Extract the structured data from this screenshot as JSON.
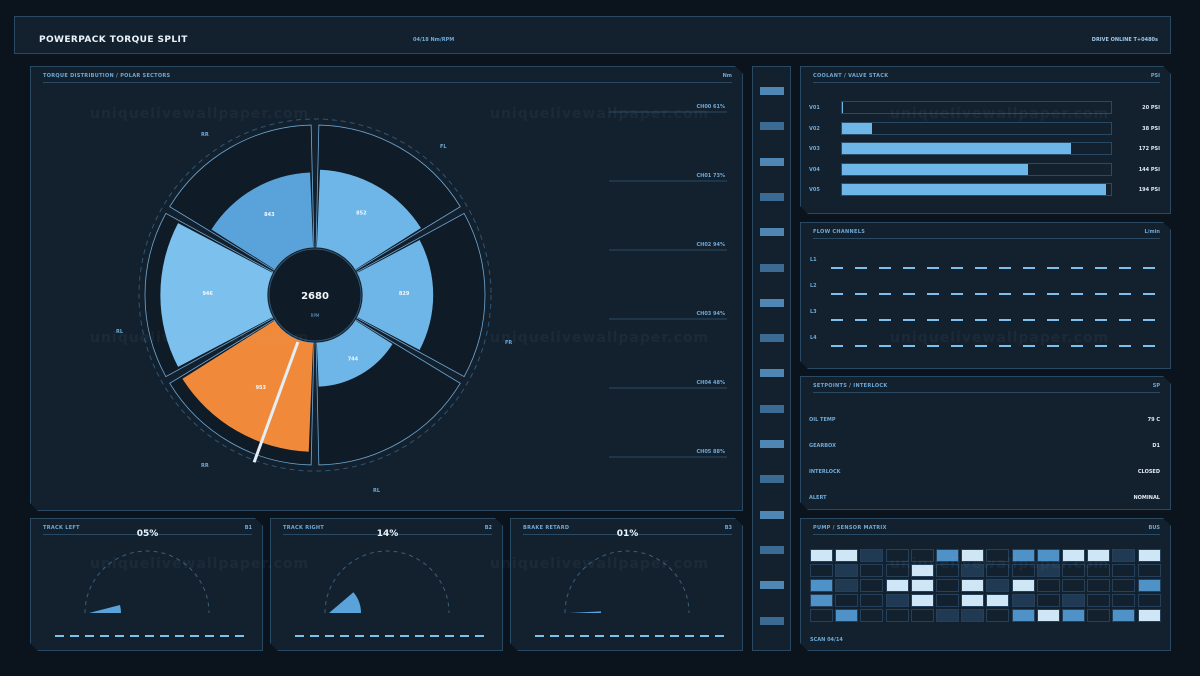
{
  "header": {
    "title": "POWERPACK TORQUE SPLIT",
    "mid": "04/18  Nm/RPM",
    "status": "DRIVE ONLINE  T+0480s"
  },
  "polar": {
    "title": "TORQUE DISTRIBUTION / POLAR SECTORS",
    "tag": "Nm",
    "center_value": "2680",
    "center_unit": "RPM",
    "labels": {
      "rr": "RR",
      "fl": "FL",
      "fr": "FR",
      "rl": "RL",
      "rl2": "RL",
      "rr2": "RR"
    },
    "channels": [
      "CH00 61%",
      "CH01 73%",
      "CH02 94%",
      "CH03 94%",
      "CH04 48%",
      "CH05 88%"
    ]
  },
  "chart_data": {
    "type": "pie",
    "title": "TORQUE DISTRIBUTION / POLAR SECTORS",
    "sectors": [
      {
        "label": "852",
        "value": 852,
        "highlight": false
      },
      {
        "label": "829",
        "value": 829,
        "highlight": false
      },
      {
        "label": "744",
        "value": 744,
        "highlight": false
      },
      {
        "label": "953",
        "value": 953,
        "highlight": true
      },
      {
        "label": "946",
        "value": 946,
        "highlight": false
      },
      {
        "label": "843",
        "value": 843,
        "highlight": false
      }
    ]
  },
  "gauges": [
    {
      "title": "TRACK LEFT",
      "tag": "B1",
      "value": "05%",
      "fraction": 0.05
    },
    {
      "title": "TRACK RIGHT",
      "tag": "B2",
      "value": "14%",
      "fraction": 0.14
    },
    {
      "title": "BRAKE RETARD",
      "tag": "B3",
      "value": "01%",
      "fraction": 0.01
    }
  ],
  "valves": {
    "title": "COOLANT / VALVE STACK",
    "tag": "PSI",
    "rows": [
      {
        "label": "V01",
        "value": "20 PSI",
        "fraction": 0.005
      },
      {
        "label": "V02",
        "value": "38 PSI",
        "fraction": 0.11
      },
      {
        "label": "V03",
        "value": "172 PSI",
        "fraction": 0.85
      },
      {
        "label": "V04",
        "value": "144 PSI",
        "fraction": 0.69
      },
      {
        "label": "V05",
        "value": "194 PSI",
        "fraction": 0.98
      }
    ]
  },
  "flow": {
    "title": "FLOW CHANNELS",
    "tag": "L/min",
    "rows": [
      "L1",
      "L2",
      "L3",
      "L4"
    ]
  },
  "setpoints": {
    "title": "SETPOINTS / INTERLOCK",
    "tag": "SP",
    "rows": [
      {
        "label": "OIL TEMP",
        "value": "79 C"
      },
      {
        "label": "GEARBOX",
        "value": "D1"
      },
      {
        "label": "INTERLOCK",
        "value": "CLOSED"
      },
      {
        "label": "ALERT",
        "value": "NOMINAL"
      }
    ]
  },
  "matrix": {
    "title": "PUMP / SENSOR MATRIX",
    "tag": "BUS",
    "footer": "SCAN 04/14",
    "colors": {
      "0": "#13212e",
      "1": "#1f3a52",
      "2": "#4f92c8",
      "3": "#cfe6f7"
    },
    "grid": [
      [
        3,
        3,
        1,
        0,
        0,
        2,
        3,
        0,
        2,
        2,
        3,
        3,
        1,
        3
      ],
      [
        0,
        1,
        0,
        0,
        3,
        0,
        1,
        0,
        0,
        1,
        0,
        0,
        0,
        0
      ],
      [
        2,
        1,
        0,
        3,
        3,
        0,
        3,
        1,
        3,
        0,
        0,
        0,
        0,
        2
      ],
      [
        2,
        0,
        0,
        1,
        3,
        0,
        3,
        3,
        1,
        0,
        1,
        0,
        0,
        0
      ],
      [
        0,
        2,
        0,
        0,
        0,
        1,
        1,
        0,
        2,
        3,
        2,
        0,
        2,
        3
      ]
    ]
  },
  "watermark": "uniquelivewallpaper.com"
}
